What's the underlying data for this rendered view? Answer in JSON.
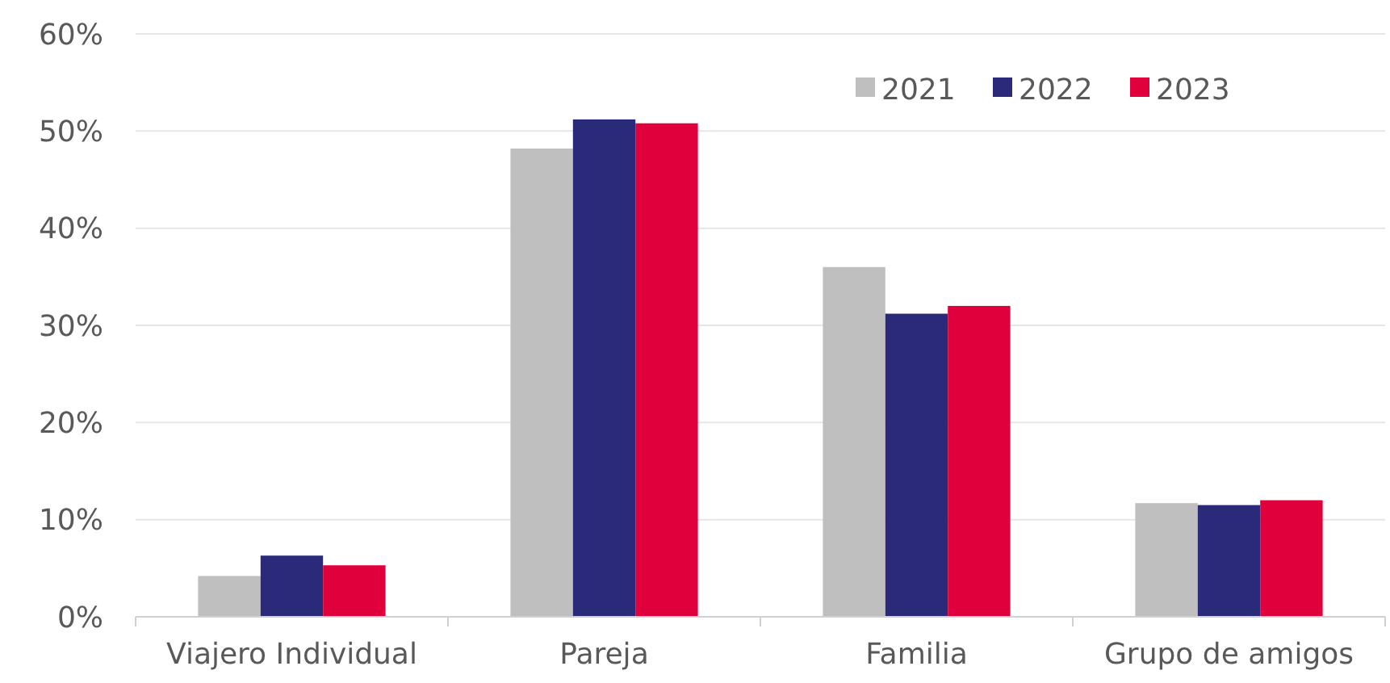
{
  "chart_data": {
    "type": "bar",
    "categories": [
      "Viajero Individual",
      "Pareja",
      "Familia",
      "Grupo de amigos"
    ],
    "series": [
      {
        "name": "2021",
        "color": "#bfbfbf",
        "values": [
          4.2,
          48.2,
          36.0,
          11.7
        ]
      },
      {
        "name": "2022",
        "color": "#2b2a7a",
        "values": [
          6.3,
          51.2,
          31.2,
          11.5
        ]
      },
      {
        "name": "2023",
        "color": "#e0003c",
        "values": [
          5.3,
          50.8,
          32.0,
          12.0
        ]
      }
    ],
    "ylim": [
      0,
      60
    ],
    "yticks": [
      {
        "value": 0,
        "label": "0%"
      },
      {
        "value": 10,
        "label": "10%"
      },
      {
        "value": 20,
        "label": "20%"
      },
      {
        "value": 30,
        "label": "30%"
      },
      {
        "value": 40,
        "label": "40%"
      },
      {
        "value": 50,
        "label": "50%"
      },
      {
        "value": 60,
        "label": "60%"
      }
    ],
    "grid": "y",
    "legend": "top right"
  }
}
